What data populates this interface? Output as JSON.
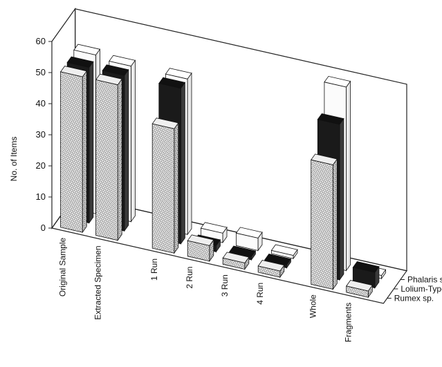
{
  "chart_data": {
    "type": "bar",
    "title": "",
    "ylabel": "No. of Items",
    "ylim": [
      0,
      60
    ],
    "yticks": [
      0,
      10,
      20,
      30,
      40,
      50,
      60
    ],
    "categories": [
      "Original Sample",
      "Extracted Specimen",
      "1 Run",
      "2 Run",
      "3 Run",
      "4 Run",
      "Whole",
      "Fragments"
    ],
    "series": [
      {
        "name": "Rumex sp.",
        "color": "#d9d9d9",
        "values": [
          50,
          50,
          40,
          5,
          2,
          2,
          40,
          2
        ]
      },
      {
        "name": "Lolium-Type",
        "color": "#1a1a1a",
        "values": [
          50,
          50,
          50,
          2,
          1,
          1,
          50,
          5
        ]
      },
      {
        "name": "Phalaris sp.",
        "color": "#fafafa",
        "values": [
          51,
          50,
          50,
          3,
          4,
          1,
          59,
          1
        ]
      }
    ],
    "grid": false,
    "legend": "right-labels-at-depth"
  }
}
